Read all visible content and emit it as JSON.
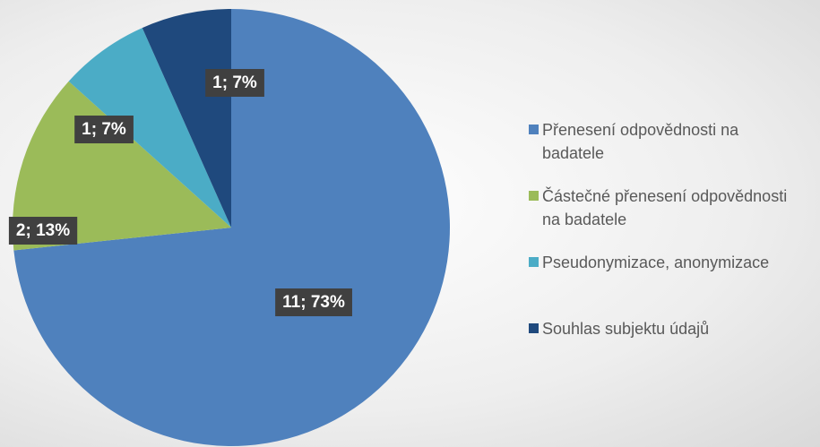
{
  "chart_data": {
    "type": "pie",
    "categories": [
      "Přenesení odpovědnosti na badatele",
      "Částečné přenesení odpovědnosti na badatele",
      "Pseudonymizace, anonymizace",
      "Souhlas subjektu údajů"
    ],
    "values": [
      11,
      2,
      1,
      1
    ],
    "value_labels": [
      "11; 73%",
      "2; 13%",
      "1; 7%",
      "1; 7%"
    ],
    "colors": [
      "#4f81bd",
      "#9bbb59",
      "#4bacc6",
      "#1f497d"
    ],
    "legend": "right"
  }
}
